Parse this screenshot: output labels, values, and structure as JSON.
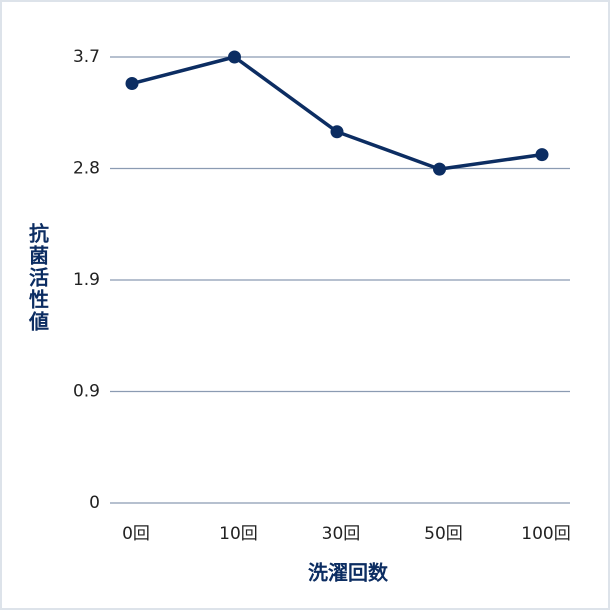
{
  "chart_data": {
    "type": "line",
    "y_label": "抗菌活性値",
    "x_label": "洗濯回数",
    "categories": [
      "0回",
      "10回",
      "30回",
      "50回",
      "100回"
    ],
    "series": [
      {
        "color": "#0c2d62",
        "values": [
          3.48,
          3.7,
          3.08,
          2.77,
          2.89
        ]
      }
    ],
    "ylim": [
      0,
      3.7
    ],
    "yticks": [
      0,
      {
        "value": 0.925,
        "label": "0.9"
      },
      {
        "value": 1.85,
        "label": "1.9"
      },
      {
        "value": 2.775,
        "label": "2.8"
      },
      3.7
    ],
    "grid": true
  }
}
